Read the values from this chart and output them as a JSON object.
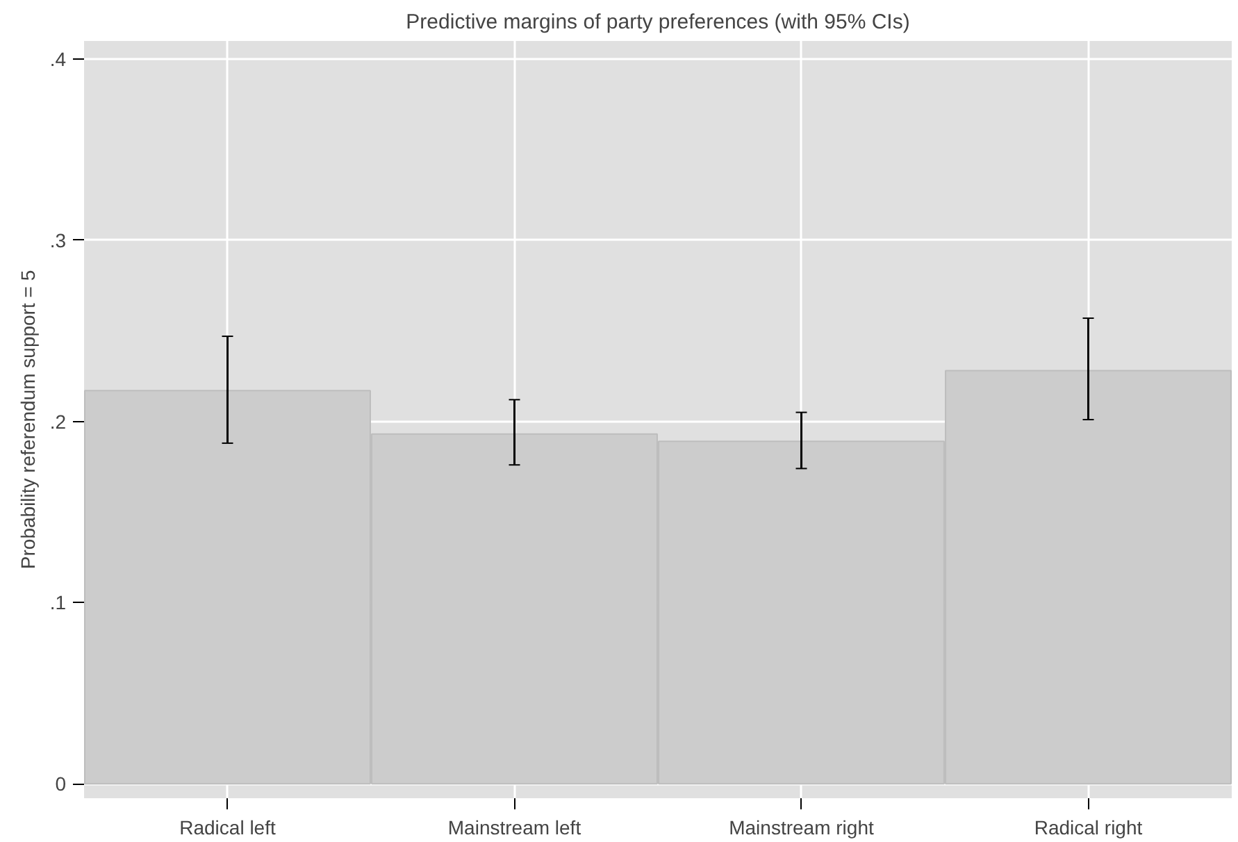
{
  "chart_data": {
    "type": "bar",
    "title": "Predictive margins of party preferences (with 95% CIs)",
    "ylabel": "Probability referendum support = 5",
    "categories": [
      "Radical left",
      "Mainstream left",
      "Mainstream right",
      "Radical right"
    ],
    "values": [
      0.217,
      0.193,
      0.189,
      0.228
    ],
    "errors": [
      [
        0.188,
        0.247
      ],
      [
        0.176,
        0.212
      ],
      [
        0.174,
        0.205
      ],
      [
        0.201,
        0.257
      ]
    ],
    "color": "#cccccc",
    "ylim": [
      -0.008,
      0.41
    ],
    "yticks": [
      {
        "value": 0,
        "label": "0"
      },
      {
        "value": 0.1,
        "label": ".1"
      },
      {
        "value": 0.2,
        "label": ".2"
      },
      {
        "value": 0.3,
        "label": ".3"
      },
      {
        "value": 0.4,
        "label": ".4"
      }
    ],
    "grid": true
  }
}
